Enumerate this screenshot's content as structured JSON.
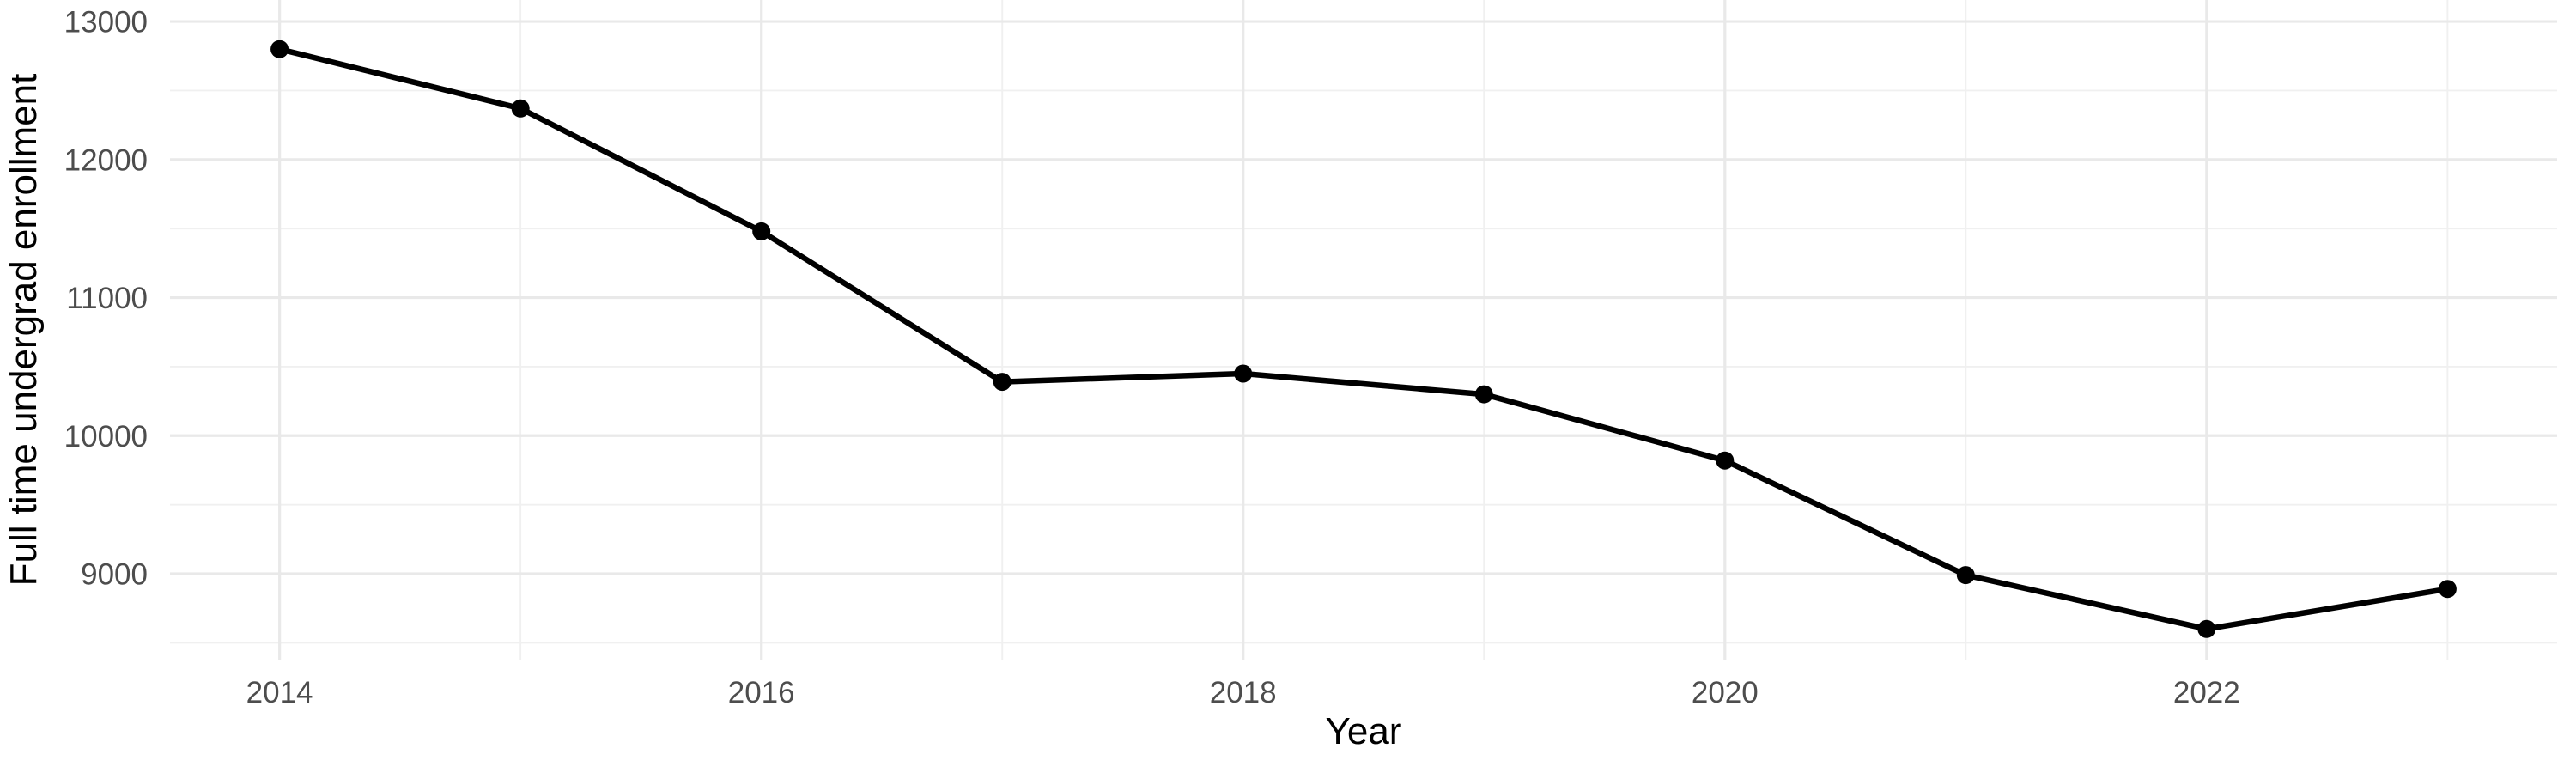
{
  "chart_data": {
    "type": "line",
    "title": "",
    "xlabel": "Year",
    "ylabel": "Full time undergrad enrollment",
    "x": [
      2014,
      2015,
      2016,
      2017,
      2018,
      2019,
      2020,
      2021,
      2022,
      2023
    ],
    "series": [
      {
        "name": "Full time undergrad enrollment",
        "values": [
          12800,
          12370,
          11480,
          10390,
          10450,
          10300,
          9820,
          8990,
          8600,
          8890
        ]
      }
    ],
    "x_major_ticks": [
      2014,
      2016,
      2018,
      2020,
      2022
    ],
    "x_tick_labels": [
      "2014",
      "2016",
      "2018",
      "2020",
      "2022"
    ],
    "x_minor_ticks": [
      2015,
      2017,
      2019,
      2021,
      2023
    ],
    "y_major_ticks": [
      13000,
      12000,
      11000,
      10000,
      9000
    ],
    "y_tick_labels": [
      "13000",
      "12000",
      "11000",
      "10000",
      "9000"
    ],
    "y_minor_ticks": [
      12500,
      11500,
      10500,
      9500,
      8500
    ],
    "xlim": [
      2013.545,
      2023.455
    ],
    "ylim": [
      8378,
      13156
    ],
    "grid": true,
    "legend": false,
    "colors": {
      "line": "#000000",
      "point": "#000000",
      "grid_major": "#E9E9E9",
      "grid_minor": "#F0F0F0",
      "tick_label": "#4D4D4D",
      "axis_title": "#000000",
      "background": "#FFFFFF"
    }
  }
}
